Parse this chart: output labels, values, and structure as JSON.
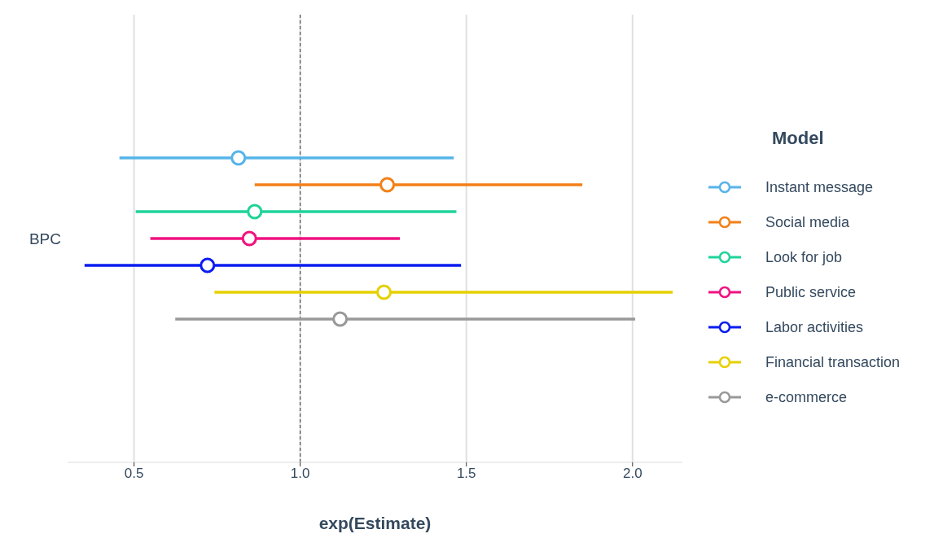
{
  "chart_data": {
    "type": "scatter",
    "orientation": "horizontal",
    "xlabel": "exp(Estimate)",
    "legend_title": "Model",
    "categories": [
      "BPC"
    ],
    "xlim": [
      0.3,
      2.15
    ],
    "xticks": [
      {
        "value": 0.5,
        "label": "0.5"
      },
      {
        "value": 1,
        "label": "1.0"
      },
      {
        "value": 1.5,
        "label": "1.5"
      },
      {
        "value": 2,
        "label": "2.0"
      }
    ],
    "grid": "x",
    "legend": "right",
    "marker": "circle",
    "ref_lines": [
      {
        "axis": "x",
        "value": 1,
        "color": "#333333",
        "line_style": "dashed"
      }
    ],
    "series": [
      {
        "name": "Instant message",
        "color": "#56b4e9",
        "values": [
          0.814
        ],
        "errors": [
          [
            0.456,
            1.462
          ]
        ]
      },
      {
        "name": "Social media",
        "color": "#f28018",
        "values": [
          1.262
        ],
        "errors": [
          [
            0.863,
            1.849
          ]
        ]
      },
      {
        "name": "Look for job",
        "color": "#1fd39a",
        "values": [
          0.863
        ],
        "errors": [
          [
            0.505,
            1.47
          ]
        ]
      },
      {
        "name": "Public service",
        "color": "#f0127f",
        "values": [
          0.847
        ],
        "errors": [
          [
            0.549,
            1.3
          ]
        ]
      },
      {
        "name": "Labor activities",
        "color": "#0a1cf0",
        "values": [
          0.721
        ],
        "errors": [
          [
            0.351,
            1.484
          ]
        ]
      },
      {
        "name": "Financial transaction",
        "color": "#e6d000",
        "values": [
          1.252
        ],
        "errors": [
          [
            0.742,
            2.121
          ]
        ]
      },
      {
        "name": "e-commerce",
        "color": "#999999",
        "values": [
          1.12
        ],
        "errors": [
          [
            0.624,
            2.008
          ]
        ]
      }
    ]
  }
}
